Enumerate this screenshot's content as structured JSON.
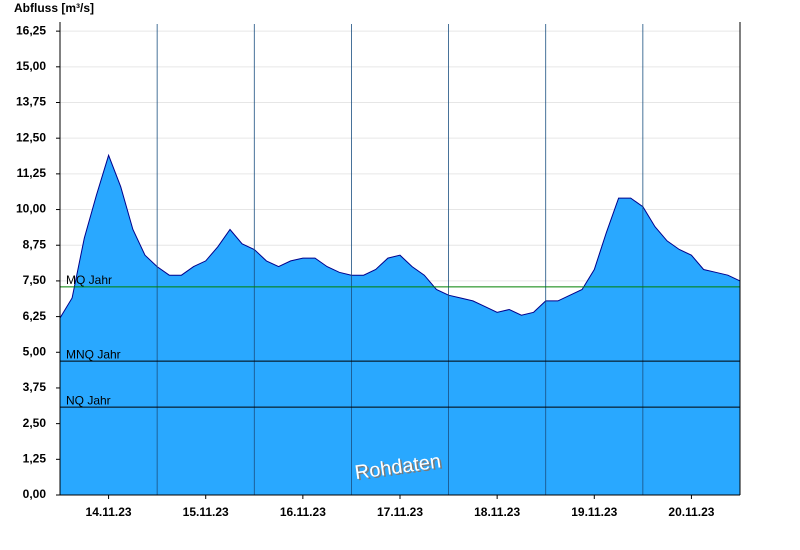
{
  "chart_data": {
    "type": "area",
    "ylabel": "Abfluss [m³/s]",
    "watermark": "Rohdaten",
    "categories": [
      null,
      null,
      null,
      null,
      "14.11.23",
      null,
      null,
      null,
      null,
      null,
      null,
      null,
      "15.11.23",
      null,
      null,
      null,
      null,
      null,
      null,
      null,
      "16.11.23",
      null,
      null,
      null,
      null,
      null,
      null,
      null,
      "17.11.23",
      null,
      null,
      null,
      null,
      null,
      null,
      null,
      "18.11.23",
      null,
      null,
      null,
      null,
      null,
      null,
      null,
      "19.11.23",
      null,
      null,
      null,
      null,
      null,
      null,
      null,
      "20.11.23",
      null,
      null,
      null,
      null
    ],
    "series": [
      {
        "name": "Abfluss",
        "color": "#29a8ff",
        "line_color": "#00008b",
        "values": [
          6.2,
          6.9,
          9.0,
          10.5,
          11.9,
          10.8,
          9.3,
          8.4,
          8.0,
          7.7,
          7.7,
          8.0,
          8.2,
          8.7,
          9.3,
          8.8,
          8.6,
          8.2,
          8.0,
          8.2,
          8.3,
          8.3,
          8.0,
          7.8,
          7.7,
          7.7,
          7.9,
          8.3,
          8.4,
          8.0,
          7.7,
          7.2,
          7.0,
          6.9,
          6.8,
          6.6,
          6.4,
          6.5,
          6.3,
          6.4,
          6.8,
          6.8,
          7.0,
          7.2,
          7.9,
          9.2,
          10.4,
          10.4,
          10.1,
          9.4,
          8.9,
          8.6,
          8.4,
          7.9,
          7.8,
          7.7,
          7.5
        ]
      }
    ],
    "reference_lines": [
      {
        "label": "MQ Jahr",
        "value": 7.29,
        "color": "#008000"
      },
      {
        "label": "MNQ Jahr",
        "value": 4.69,
        "color": "#000000"
      },
      {
        "label": "NQ Jahr",
        "value": 3.08,
        "color": "#000000"
      }
    ],
    "ylim": [
      0,
      16.5
    ],
    "yticks": [
      {
        "value": 0,
        "label": "0,00"
      },
      {
        "value": 1.25,
        "label": "1,25"
      },
      {
        "value": 2.5,
        "label": "2,50"
      },
      {
        "value": 3.75,
        "label": "3,75"
      },
      {
        "value": 5,
        "label": "5,00"
      },
      {
        "value": 6.25,
        "label": "6,25"
      },
      {
        "value": 7.5,
        "label": "7,50"
      },
      {
        "value": 8.75,
        "label": "8,75"
      },
      {
        "value": 10,
        "label": "10,00"
      },
      {
        "value": 11.25,
        "label": "11,25"
      },
      {
        "value": 12.5,
        "label": "12,50"
      },
      {
        "value": 13.75,
        "label": "13,75"
      },
      {
        "value": 15,
        "label": "15,00"
      },
      {
        "value": 16.25,
        "label": "16,25"
      }
    ],
    "grid": true
  }
}
